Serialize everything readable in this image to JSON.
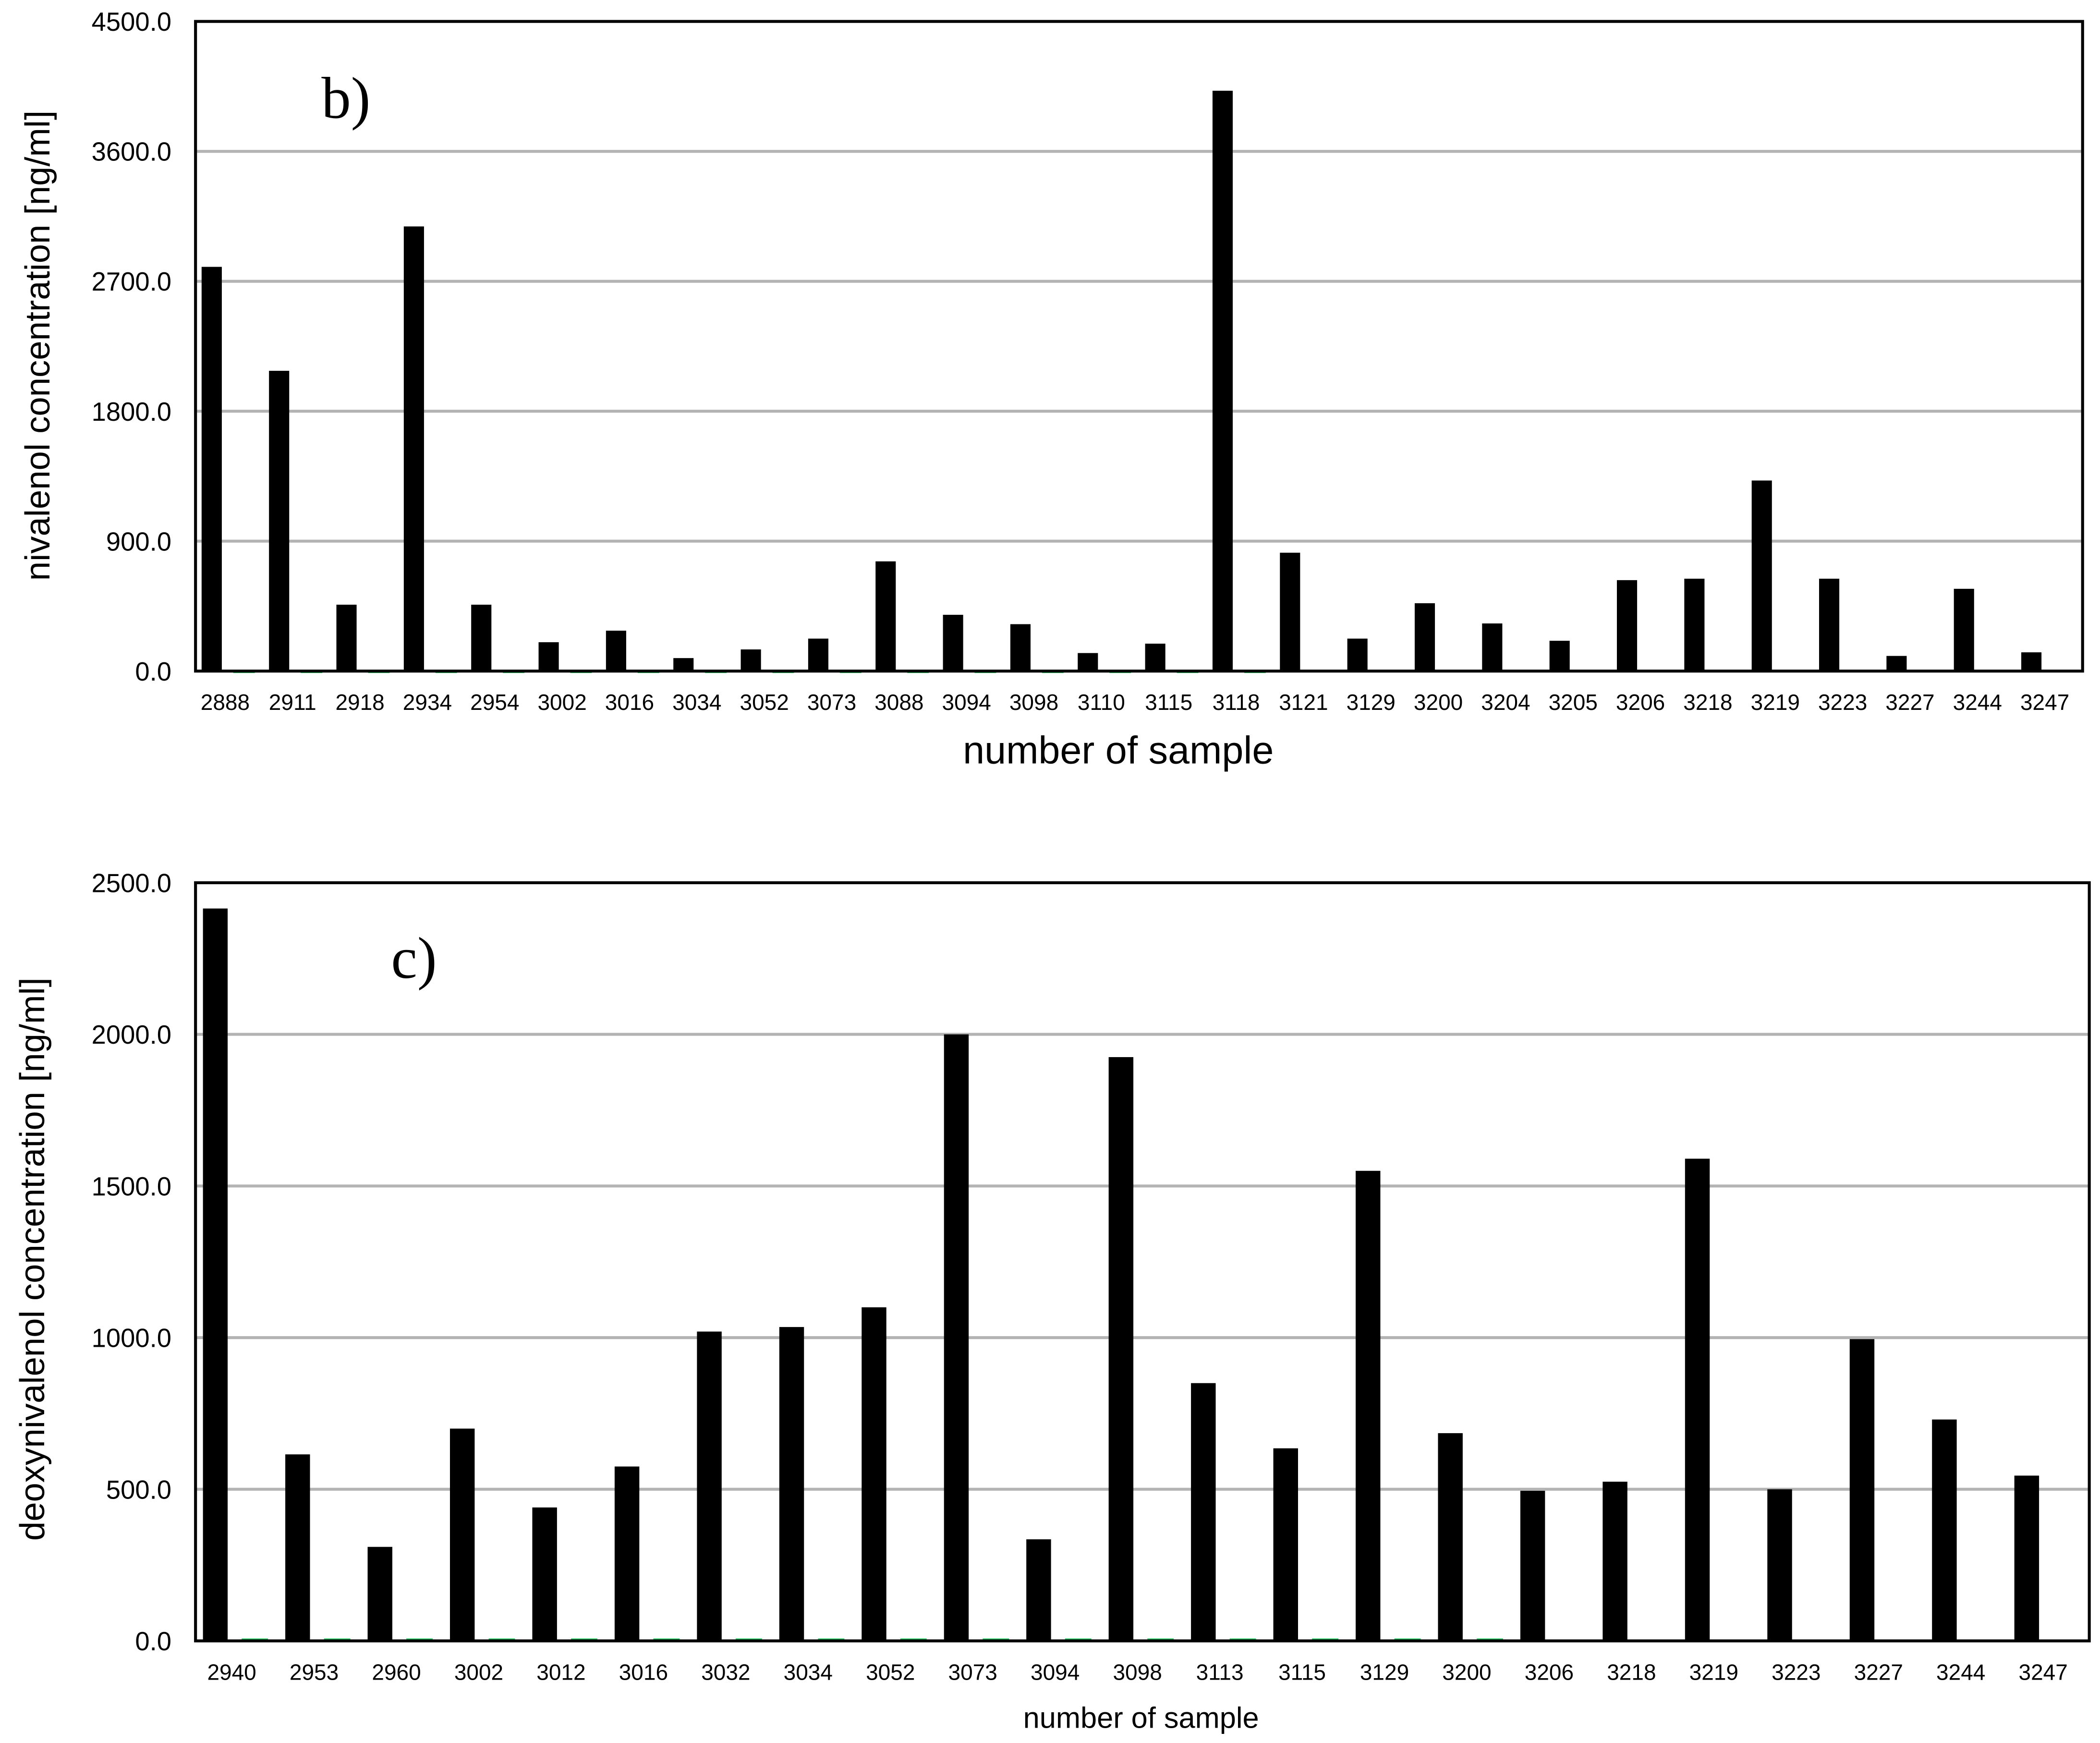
{
  "colors": {
    "bar_primary": "#000000",
    "bar_secondary": "#22c55e",
    "gridline": "#b3b3b3",
    "frame": "#000000"
  },
  "chart_data": [
    {
      "type": "bar",
      "panel_label": "b)",
      "title": "",
      "xlabel": "number of sample",
      "ylabel": "nivalenol concentration [ng/ml]",
      "ylim": [
        0,
        4500
      ],
      "yticks": [
        "0.0",
        "900.0",
        "1800.0",
        "2700.0",
        "3600.0",
        "4500.0"
      ],
      "grid": true,
      "legend": "none",
      "categories": [
        "2888",
        "2911",
        "2918",
        "2934",
        "2954",
        "3002",
        "3016",
        "3034",
        "3052",
        "3073",
        "3088",
        "3094",
        "3098",
        "3110",
        "3115",
        "3118",
        "3121",
        "3129",
        "3200",
        "3204",
        "3205",
        "3206",
        "3218",
        "3219",
        "3223",
        "3227",
        "3244",
        "3247"
      ],
      "series": [
        {
          "color": "#000000",
          "values": [
            2800,
            2080,
            460,
            3080,
            460,
            200,
            280,
            90,
            150,
            225,
            760,
            390,
            325,
            125,
            190,
            4020,
            820,
            225,
            470,
            330,
            210,
            630,
            640,
            1320,
            640,
            105,
            570,
            130
          ]
        },
        {
          "color": "#22c55e",
          "values": [
            5,
            5,
            5,
            5,
            5,
            5,
            5,
            5,
            5,
            5,
            5,
            5,
            5,
            5,
            5,
            5,
            0,
            0,
            0,
            0,
            0,
            0,
            0,
            0,
            0,
            0,
            0,
            0
          ]
        }
      ]
    },
    {
      "type": "bar",
      "panel_label": "c)",
      "title": "",
      "xlabel": "number of sample",
      "ylabel": "deoxynivalenol concentration [ng/ml]",
      "ylim": [
        0,
        2500
      ],
      "yticks": [
        "0.0",
        "500.0",
        "1000.0",
        "1500.0",
        "2000.0",
        "2500.0"
      ],
      "grid": true,
      "legend": "none",
      "categories": [
        "2940",
        "2953",
        "2960",
        "3002",
        "3012",
        "3016",
        "3032",
        "3034",
        "3052",
        "3073",
        "3094",
        "3098",
        "3113",
        "3115",
        "3129",
        "3200",
        "3206",
        "3218",
        "3219",
        "3223",
        "3227",
        "3244",
        "3247"
      ],
      "series": [
        {
          "color": "#000000",
          "values": [
            2415,
            615,
            310,
            700,
            440,
            575,
            1020,
            1035,
            1100,
            2000,
            335,
            1925,
            850,
            635,
            1550,
            685,
            495,
            525,
            1590,
            500,
            995,
            730,
            545
          ]
        },
        {
          "color": "#22c55e",
          "values": [
            8,
            8,
            8,
            8,
            8,
            8,
            8,
            8,
            8,
            8,
            8,
            8,
            8,
            8,
            8,
            8,
            0,
            0,
            0,
            0,
            0,
            0,
            0
          ]
        }
      ]
    }
  ]
}
